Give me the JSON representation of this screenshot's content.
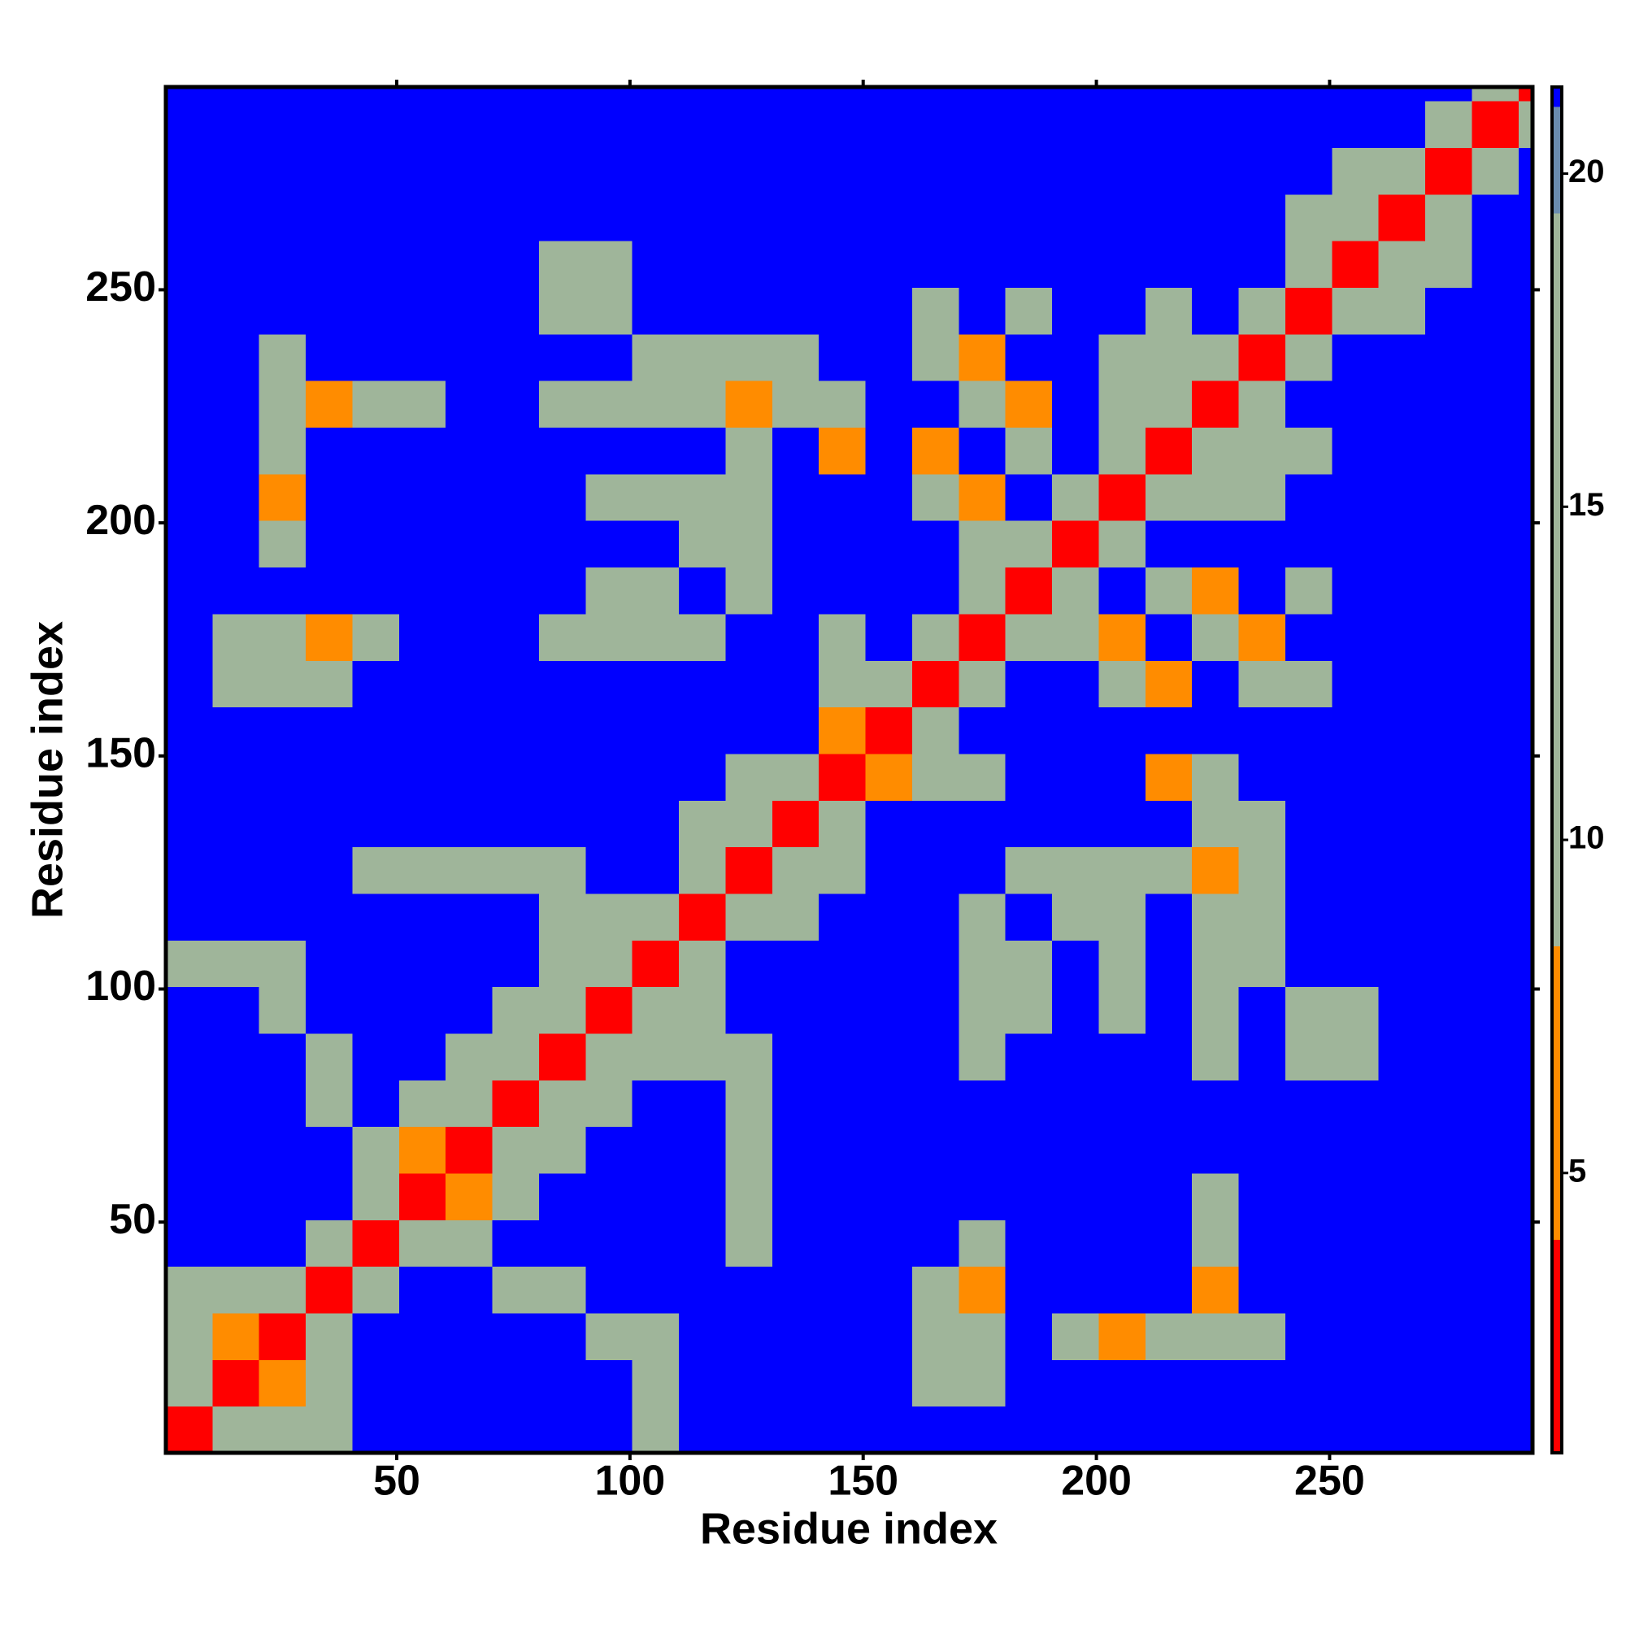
{
  "chart_data": {
    "type": "heatmap",
    "x_label": "Residue index",
    "y_label": "Residue index",
    "xlim": [
      0.5,
      293.5
    ],
    "ylim": [
      0.5,
      293.5
    ],
    "xticks": [
      50,
      100,
      150,
      200,
      250
    ],
    "yticks": [
      50,
      100,
      150,
      200,
      250
    ],
    "x_edges": [
      0.5,
      10.5,
      20.5,
      30.5,
      40.5,
      50.5,
      60.5,
      70.5,
      80.5,
      90.5,
      100.5,
      110.5,
      120.5,
      130.5,
      140.5,
      150.5,
      160.5,
      170.5,
      180.5,
      190.5,
      200.5,
      210.5,
      220.5,
      230.5,
      240.5,
      250.5,
      260.5,
      270.5,
      280.5,
      290.5,
      293.5
    ],
    "y_edges": [
      0.5,
      10.5,
      20.5,
      30.5,
      40.5,
      50.5,
      60.5,
      70.5,
      80.5,
      90.5,
      100.5,
      110.5,
      120.5,
      130.5,
      140.5,
      150.5,
      160.5,
      170.5,
      180.5,
      190.5,
      200.5,
      210.5,
      220.5,
      230.5,
      240.5,
      250.5,
      260.5,
      270.5,
      280.5,
      290.5,
      293.5
    ],
    "z": [
      [
        3,
        12,
        12,
        12,
        21,
        21,
        21,
        21,
        21,
        21,
        12,
        21,
        21,
        21,
        21,
        21,
        21,
        21,
        21,
        21,
        21,
        21,
        21,
        21,
        21,
        21,
        21,
        21,
        21,
        21
      ],
      [
        12,
        3,
        7,
        12,
        21,
        21,
        21,
        21,
        21,
        21,
        12,
        21,
        21,
        21,
        21,
        21,
        12,
        12,
        21,
        21,
        21,
        21,
        21,
        21,
        21,
        21,
        21,
        21,
        21,
        21
      ],
      [
        12,
        7,
        3,
        12,
        21,
        21,
        21,
        21,
        21,
        12,
        12,
        21,
        21,
        21,
        21,
        21,
        12,
        12,
        21,
        12,
        7,
        12,
        12,
        12,
        21,
        21,
        21,
        21,
        21,
        21
      ],
      [
        12,
        12,
        12,
        3,
        12,
        21,
        21,
        12,
        12,
        21,
        21,
        21,
        21,
        21,
        21,
        21,
        12,
        7,
        21,
        21,
        21,
        21,
        7,
        21,
        21,
        21,
        21,
        21,
        21,
        21
      ],
      [
        21,
        21,
        21,
        12,
        3,
        12,
        12,
        21,
        21,
        21,
        21,
        21,
        12,
        21,
        21,
        21,
        21,
        12,
        21,
        21,
        21,
        21,
        12,
        21,
        21,
        21,
        21,
        21,
        21,
        21
      ],
      [
        21,
        21,
        21,
        21,
        12,
        3,
        7,
        12,
        21,
        21,
        21,
        21,
        12,
        21,
        21,
        21,
        21,
        21,
        21,
        21,
        21,
        21,
        12,
        21,
        21,
        21,
        21,
        21,
        21,
        21
      ],
      [
        21,
        21,
        21,
        21,
        12,
        7,
        3,
        12,
        12,
        21,
        21,
        21,
        12,
        21,
        21,
        21,
        21,
        21,
        21,
        21,
        21,
        21,
        21,
        21,
        21,
        21,
        21,
        21,
        21,
        21
      ],
      [
        21,
        21,
        21,
        12,
        21,
        12,
        12,
        3,
        12,
        12,
        21,
        21,
        12,
        21,
        21,
        21,
        21,
        21,
        21,
        21,
        21,
        21,
        21,
        21,
        21,
        21,
        21,
        21,
        21,
        21
      ],
      [
        21,
        21,
        21,
        12,
        21,
        21,
        12,
        12,
        3,
        12,
        12,
        12,
        12,
        21,
        21,
        21,
        21,
        12,
        21,
        21,
        21,
        21,
        12,
        21,
        12,
        12,
        21,
        21,
        21,
        21
      ],
      [
        21,
        21,
        12,
        21,
        21,
        21,
        21,
        12,
        12,
        3,
        12,
        12,
        21,
        21,
        21,
        21,
        21,
        12,
        12,
        21,
        12,
        21,
        12,
        21,
        12,
        12,
        21,
        21,
        21,
        21
      ],
      [
        12,
        12,
        12,
        21,
        21,
        21,
        21,
        21,
        12,
        12,
        3,
        12,
        21,
        21,
        21,
        21,
        21,
        12,
        12,
        21,
        12,
        21,
        12,
        12,
        21,
        21,
        21,
        21,
        21,
        21
      ],
      [
        21,
        21,
        21,
        21,
        21,
        21,
        21,
        21,
        12,
        12,
        12,
        3,
        12,
        12,
        21,
        21,
        21,
        12,
        21,
        12,
        12,
        21,
        12,
        12,
        21,
        21,
        21,
        21,
        21,
        21
      ],
      [
        21,
        21,
        21,
        21,
        12,
        12,
        12,
        12,
        12,
        21,
        21,
        12,
        3,
        12,
        12,
        21,
        21,
        21,
        12,
        12,
        12,
        12,
        7,
        12,
        21,
        21,
        21,
        21,
        21,
        21
      ],
      [
        21,
        21,
        21,
        21,
        21,
        21,
        21,
        21,
        21,
        21,
        21,
        12,
        12,
        3,
        12,
        21,
        21,
        21,
        21,
        21,
        21,
        21,
        12,
        12,
        21,
        21,
        21,
        21,
        21,
        21
      ],
      [
        21,
        21,
        21,
        21,
        21,
        21,
        21,
        21,
        21,
        21,
        21,
        21,
        12,
        12,
        3,
        7,
        12,
        12,
        21,
        21,
        21,
        7,
        12,
        21,
        21,
        21,
        21,
        21,
        21,
        21
      ],
      [
        21,
        21,
        21,
        21,
        21,
        21,
        21,
        21,
        21,
        21,
        21,
        21,
        21,
        21,
        7,
        3,
        12,
        21,
        21,
        21,
        21,
        21,
        21,
        21,
        21,
        21,
        21,
        21,
        21,
        21
      ],
      [
        21,
        12,
        12,
        12,
        21,
        21,
        21,
        21,
        21,
        21,
        21,
        21,
        21,
        21,
        12,
        12,
        3,
        12,
        21,
        21,
        12,
        7,
        21,
        12,
        12,
        21,
        21,
        21,
        21,
        21
      ],
      [
        21,
        12,
        12,
        7,
        12,
        21,
        21,
        21,
        12,
        12,
        12,
        12,
        21,
        21,
        12,
        21,
        12,
        3,
        12,
        12,
        7,
        21,
        12,
        7,
        21,
        21,
        21,
        21,
        21,
        21
      ],
      [
        21,
        21,
        21,
        21,
        21,
        21,
        21,
        21,
        21,
        12,
        12,
        21,
        12,
        21,
        21,
        21,
        21,
        12,
        3,
        12,
        21,
        12,
        7,
        21,
        12,
        21,
        21,
        21,
        21,
        21
      ],
      [
        21,
        21,
        12,
        21,
        21,
        21,
        21,
        21,
        21,
        21,
        21,
        12,
        12,
        21,
        21,
        21,
        21,
        12,
        12,
        3,
        12,
        21,
        21,
        21,
        21,
        21,
        21,
        21,
        21,
        21
      ],
      [
        21,
        21,
        7,
        21,
        21,
        21,
        21,
        21,
        21,
        12,
        12,
        12,
        12,
        21,
        21,
        21,
        12,
        7,
        21,
        12,
        3,
        12,
        12,
        12,
        21,
        21,
        21,
        21,
        21,
        21
      ],
      [
        21,
        21,
        12,
        21,
        21,
        21,
        21,
        21,
        21,
        21,
        21,
        21,
        12,
        21,
        7,
        21,
        7,
        21,
        12,
        21,
        12,
        3,
        12,
        12,
        12,
        21,
        21,
        21,
        21,
        21
      ],
      [
        21,
        21,
        12,
        7,
        12,
        12,
        21,
        21,
        12,
        12,
        12,
        12,
        7,
        12,
        12,
        21,
        21,
        12,
        7,
        21,
        12,
        12,
        3,
        12,
        21,
        21,
        21,
        21,
        21,
        21
      ],
      [
        21,
        21,
        12,
        21,
        21,
        21,
        21,
        21,
        21,
        21,
        12,
        12,
        12,
        12,
        21,
        21,
        12,
        7,
        21,
        21,
        12,
        12,
        12,
        3,
        12,
        21,
        21,
        21,
        21,
        21
      ],
      [
        21,
        21,
        21,
        21,
        21,
        21,
        21,
        21,
        12,
        12,
        21,
        21,
        21,
        21,
        21,
        21,
        12,
        21,
        12,
        21,
        21,
        12,
        21,
        12,
        3,
        12,
        12,
        21,
        21,
        21
      ],
      [
        21,
        21,
        21,
        21,
        21,
        21,
        21,
        21,
        12,
        12,
        21,
        21,
        21,
        21,
        21,
        21,
        21,
        21,
        21,
        21,
        21,
        21,
        21,
        21,
        12,
        3,
        12,
        12,
        21,
        21
      ],
      [
        21,
        21,
        21,
        21,
        21,
        21,
        21,
        21,
        21,
        21,
        21,
        21,
        21,
        21,
        21,
        21,
        21,
        21,
        21,
        21,
        21,
        21,
        21,
        21,
        12,
        12,
        3,
        12,
        21,
        21
      ],
      [
        21,
        21,
        21,
        21,
        21,
        21,
        21,
        21,
        21,
        21,
        21,
        21,
        21,
        21,
        21,
        21,
        21,
        21,
        21,
        21,
        21,
        21,
        21,
        21,
        21,
        12,
        12,
        3,
        12,
        21
      ],
      [
        21,
        21,
        21,
        21,
        21,
        21,
        21,
        21,
        21,
        21,
        21,
        21,
        21,
        21,
        21,
        21,
        21,
        21,
        21,
        21,
        21,
        21,
        21,
        21,
        21,
        21,
        21,
        12,
        3,
        12
      ],
      [
        21,
        21,
        21,
        21,
        21,
        21,
        21,
        21,
        21,
        21,
        21,
        21,
        21,
        21,
        21,
        21,
        21,
        21,
        21,
        21,
        21,
        21,
        21,
        21,
        21,
        21,
        21,
        21,
        12,
        3
      ]
    ],
    "colorbar": {
      "clim": [
        0.8,
        21.3
      ],
      "ticks": [
        5,
        10,
        15,
        20
      ],
      "bands": [
        {
          "from": 0.8,
          "to": 4.0,
          "color": "#ff0000"
        },
        {
          "from": 4.0,
          "to": 8.4,
          "color": "#ff8c00"
        },
        {
          "from": 8.4,
          "to": 19.4,
          "color": "#9fb59a"
        },
        {
          "from": 19.4,
          "to": 21.0,
          "color": "#6a8caf"
        },
        {
          "from": 21.0,
          "to": 21.3,
          "color": "#0000ff"
        }
      ]
    }
  }
}
